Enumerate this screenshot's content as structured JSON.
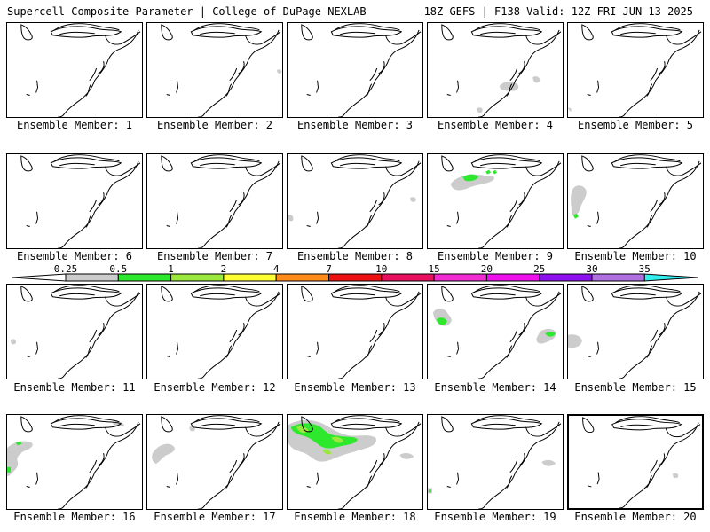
{
  "header": {
    "left": "Supercell Composite Parameter | College of DuPage NEXLAB",
    "right": "18Z GEFS | F138 Valid: 12Z FRI JUN 13 2025"
  },
  "colorbar": {
    "labels": [
      "0.25",
      "0.5",
      "1",
      "2",
      "4",
      "7",
      "10",
      "15",
      "20",
      "25",
      "30",
      "35"
    ],
    "colors": [
      "#ffffff",
      "#cccccc",
      "#2ee82e",
      "#9be83c",
      "#ffff33",
      "#ff8c1a",
      "#ee1111",
      "#e8115f",
      "#f02cd0",
      "#ee11ee",
      "#8d11ee",
      "#b070e0",
      "#33eeee"
    ]
  },
  "members": [
    {
      "label": "Ensemble Member: 1"
    },
    {
      "label": "Ensemble Member: 2"
    },
    {
      "label": "Ensemble Member: 3"
    },
    {
      "label": "Ensemble Member: 4"
    },
    {
      "label": "Ensemble Member: 5"
    },
    {
      "label": "Ensemble Member: 6"
    },
    {
      "label": "Ensemble Member: 7"
    },
    {
      "label": "Ensemble Member: 8"
    },
    {
      "label": "Ensemble Member: 9"
    },
    {
      "label": "Ensemble Member: 10"
    },
    {
      "label": "Ensemble Member: 11"
    },
    {
      "label": "Ensemble Member: 12"
    },
    {
      "label": "Ensemble Member: 13"
    },
    {
      "label": "Ensemble Member: 14"
    },
    {
      "label": "Ensemble Member: 15"
    },
    {
      "label": "Ensemble Member: 16"
    },
    {
      "label": "Ensemble Member: 17"
    },
    {
      "label": "Ensemble Member: 18"
    },
    {
      "label": "Ensemble Member: 19"
    },
    {
      "label": "Ensemble Member: 20"
    }
  ]
}
